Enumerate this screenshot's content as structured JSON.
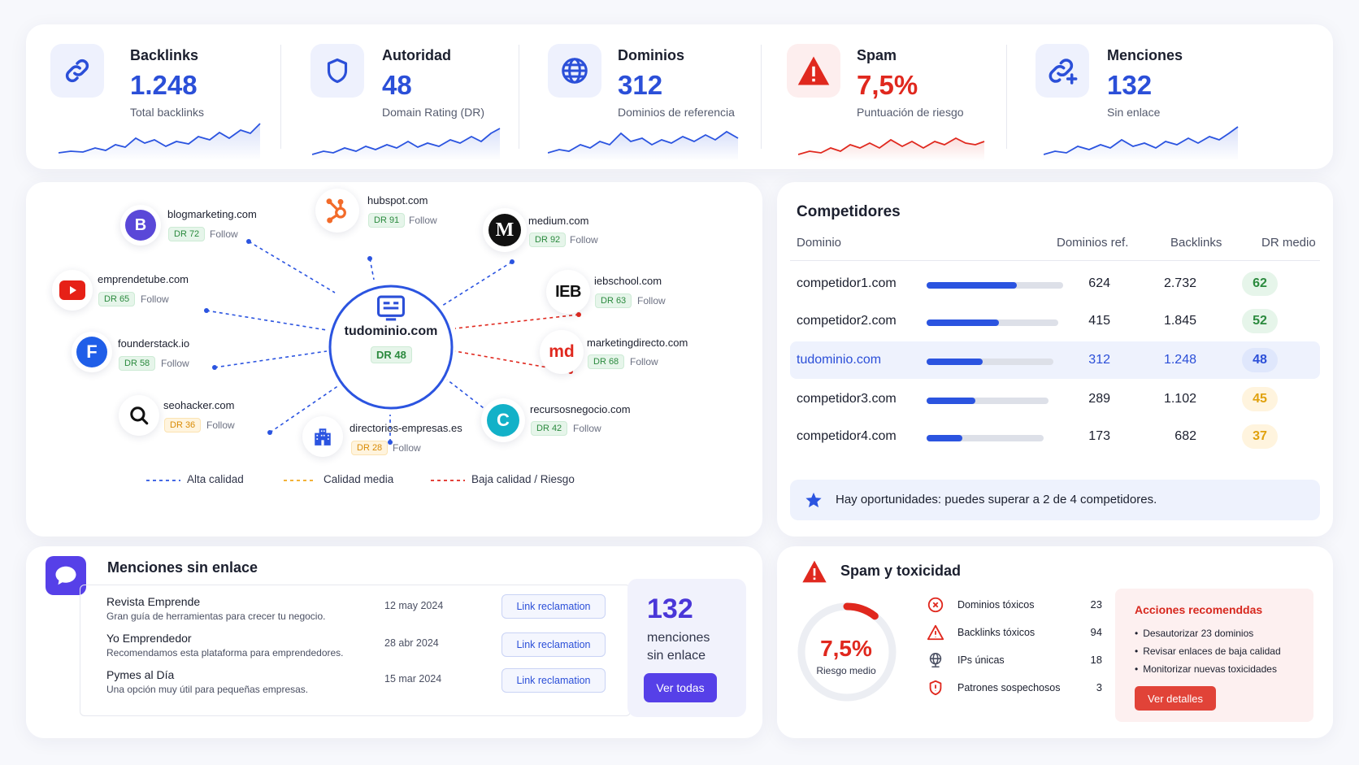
{
  "kpis": [
    {
      "title": "Backlinks",
      "value": "1.248",
      "subtitle": "Total backlinks",
      "icon": "link-icon",
      "color": "#2b4fd8"
    },
    {
      "title": "Autoridad",
      "value": "48",
      "subtitle": "Domain Rating (DR)",
      "icon": "shield-icon",
      "color": "#2b4fd8"
    },
    {
      "title": "Dominios",
      "value": "312",
      "subtitle": "Dominios de referencia",
      "icon": "globe-icon",
      "color": "#2b4fd8"
    },
    {
      "title": "Spam",
      "value": "7,5%",
      "subtitle": "Puntuación de riesgo",
      "icon": "warning-icon",
      "color": "#e0281e"
    },
    {
      "title": "Menciones",
      "value": "132",
      "subtitle": "Sin enlace",
      "icon": "link-plus-icon",
      "color": "#2b4fd8"
    }
  ],
  "network": {
    "center": {
      "domain": "tudominio.com",
      "dr": "DR 48"
    },
    "nodes": [
      {
        "domain": "blogmarketing.com",
        "dr": "DR 72",
        "follow": "Follow",
        "quality": "high"
      },
      {
        "domain": "hubspot.com",
        "dr": "DR 91",
        "follow": "Follow",
        "quality": "high"
      },
      {
        "domain": "medium.com",
        "dr": "DR 92",
        "follow": "Follow",
        "quality": "high"
      },
      {
        "domain": "emprendetube.com",
        "dr": "DR 65",
        "follow": "Follow",
        "quality": "high"
      },
      {
        "domain": "iebschool.com",
        "dr": "DR 63",
        "follow": "Follow",
        "quality": "low"
      },
      {
        "domain": "founderstack.io",
        "dr": "DR 58",
        "follow": "Follow",
        "quality": "high"
      },
      {
        "domain": "marketingdirecto.com",
        "dr": "DR 68",
        "follow": "Follow",
        "quality": "low"
      },
      {
        "domain": "seohacker.com",
        "dr": "DR 36",
        "follow": "Follow",
        "quality": "medium"
      },
      {
        "domain": "directorios-empresas.es",
        "dr": "DR 28",
        "follow": "Follow",
        "quality": "medium"
      },
      {
        "domain": "recursosnegocio.com",
        "dr": "DR 42",
        "follow": "Follow",
        "quality": "high"
      }
    ],
    "logos": {
      "ieb": "IEB",
      "md": "md",
      "medium": "M",
      "blog": "B",
      "founder": "F",
      "recursos": "C"
    },
    "legend": [
      "Alta calidad",
      "Calidad media",
      "Baja calidad / Riesgo"
    ],
    "colors": {
      "high": "#2b54e0",
      "medium": "#f0a81c",
      "low": "#e0281e"
    }
  },
  "competitors": {
    "title": "Competidores",
    "headers": [
      "Dominio",
      "Dominios ref.",
      "Backlinks",
      "DR medio"
    ],
    "rows": [
      {
        "domain": "competidor1.com",
        "ref": "624",
        "backlinks": "2.732",
        "dr": "62",
        "ref_share": 0.66,
        "highlight": false,
        "dr_color": "green"
      },
      {
        "domain": "competidor2.com",
        "ref": "415",
        "backlinks": "1.845",
        "dr": "52",
        "ref_share": 0.53,
        "highlight": false,
        "dr_color": "green"
      },
      {
        "domain": "tudominio.com",
        "ref": "312",
        "backlinks": "1.248",
        "dr": "48",
        "ref_share": 0.41,
        "highlight": true,
        "dr_color": "blue"
      },
      {
        "domain": "competidor3.com",
        "ref": "289",
        "backlinks": "1.102",
        "dr": "45",
        "ref_share": 0.36,
        "highlight": false,
        "dr_color": "orange"
      },
      {
        "domain": "competidor4.com",
        "ref": "173",
        "backlinks": "682",
        "dr": "37",
        "ref_share": 0.26,
        "highlight": false,
        "dr_color": "orange"
      }
    ],
    "banner": "Hay oportunidades: puedes superar a 2 de 4 competidores."
  },
  "mentions": {
    "title": "Menciones sin enlace",
    "items": [
      {
        "name": "Revista Emprende",
        "desc": "Gran guía de herramientas para crecer tu negocio.",
        "date": "12 may 2024",
        "action": "Link reclamation"
      },
      {
        "name": "Yo Emprendedor",
        "desc": "Recomendamos esta plataforma para emprendedores.",
        "date": "28 abr 2024",
        "action": "Link reclamation"
      },
      {
        "name": "Pymes al Día",
        "desc": "Una opción muy útil para pequeñas empresas.",
        "date": "15 mar 2024",
        "action": "Link reclamation"
      }
    ],
    "count": "132",
    "count_label_1": "menciones",
    "count_label_2": "sin enlace",
    "button": "Ver todas"
  },
  "spam": {
    "title": "Spam y toxicidad",
    "gauge_value": "7,5%",
    "gauge_label": "Riesgo medio",
    "gauge_level": 0.075,
    "items": [
      {
        "label": "Dominios tóxicos",
        "value": "23",
        "icon": "x-circle-icon"
      },
      {
        "label": "Backlinks tóxicos",
        "value": "94",
        "icon": "warning-triangle-icon"
      },
      {
        "label": "IPs únicas",
        "value": "18",
        "icon": "network-globe-icon"
      },
      {
        "label": "Patrones sospechosos",
        "value": "3",
        "icon": "alert-shield-icon"
      }
    ],
    "actions_title": "Acciones recomenddas",
    "actions": [
      "Desautorizar 23 dominios",
      "Revisar enlaces de baja calidad",
      "Monitorizar nuevas toxicidades"
    ],
    "actions_button": "Ver detalles"
  }
}
